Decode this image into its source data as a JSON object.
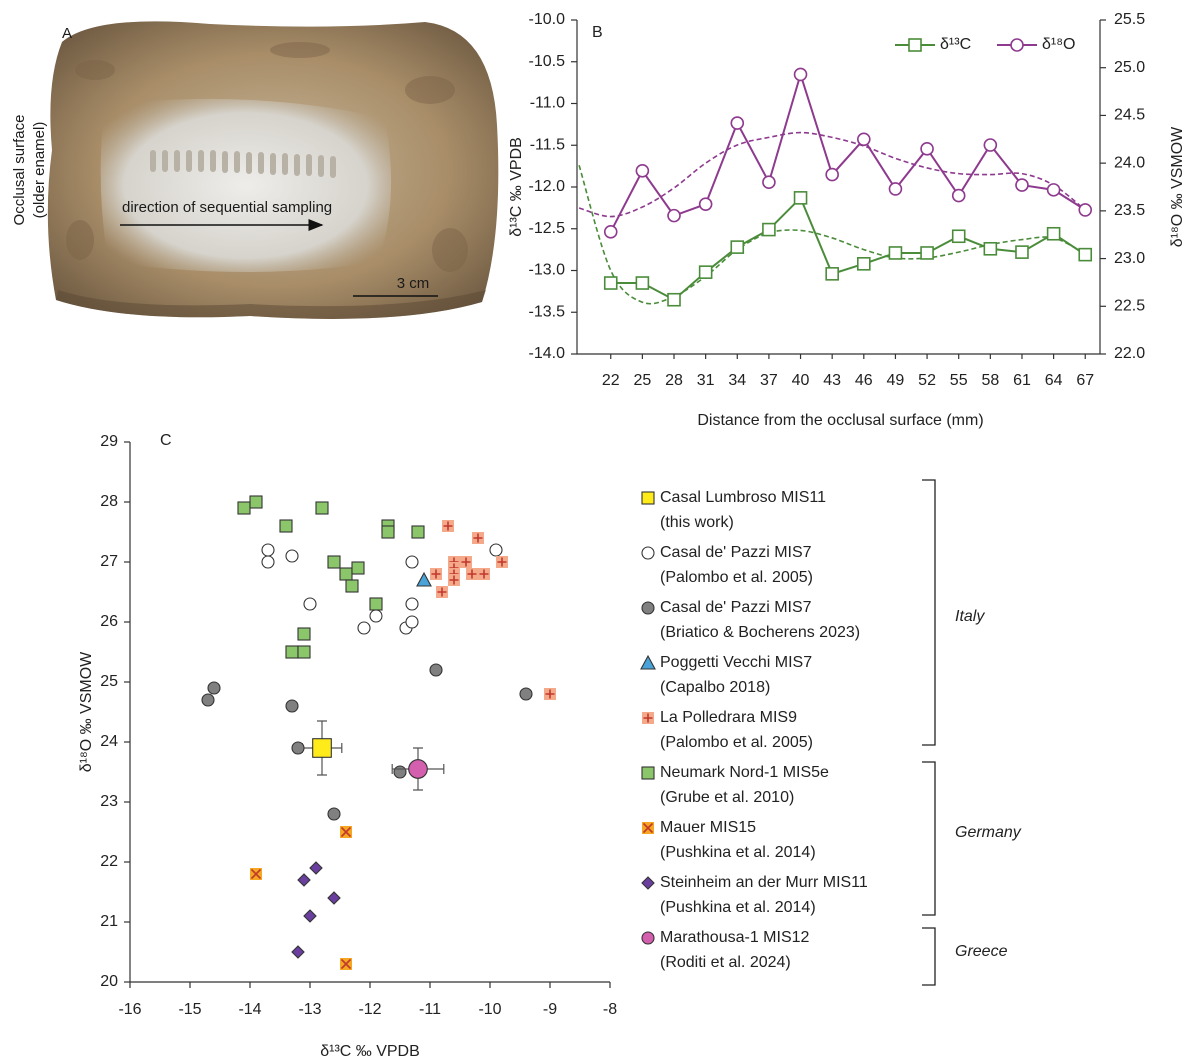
{
  "panel_a": {
    "label": "A",
    "side_label": [
      "Occlusal surface",
      "(older enamel)"
    ],
    "arrow_label": "direction of sequential sampling",
    "scale_label": "3 cm"
  },
  "chart_data": [
    {
      "type": "line",
      "label": "B",
      "x": [
        22,
        25,
        28,
        31,
        34,
        37,
        40,
        43,
        46,
        49,
        52,
        55,
        58,
        61,
        64,
        67
      ],
      "xlim": [
        18.8,
        68.4
      ],
      "xticks": [
        22,
        25,
        28,
        31,
        34,
        37,
        40,
        43,
        46,
        49,
        52,
        55,
        58,
        61,
        64,
        67
      ],
      "xlabel": "Distance from the occlusal surface (mm)",
      "ylabel": "δ¹³C ‰ VPDB",
      "y2label": "δ¹⁸O ‰ VSMOW",
      "ylim": [
        -14,
        -10
      ],
      "yticks": [
        {
          "value": -14,
          "label": "-14.0"
        },
        -13.5,
        {
          "value": -13,
          "label": "-13.0"
        },
        -12.5,
        {
          "value": -12,
          "label": "-12.0"
        },
        -11.5,
        {
          "value": -11,
          "label": "-11.0"
        },
        -10.5,
        {
          "value": -10,
          "label": "-10.0"
        }
      ],
      "y2lim": [
        22,
        25.5
      ],
      "y2ticks": [
        {
          "value": 22,
          "label": "22.0"
        },
        22.5,
        {
          "value": 23,
          "label": "23.0"
        },
        23.5,
        {
          "value": 24,
          "label": "24.0"
        },
        24.5,
        {
          "value": 25,
          "label": "25.0"
        },
        25.5
      ],
      "legend": "top-right",
      "series": [
        {
          "name": "δ¹³C",
          "color": "#4a8c3a",
          "marker": "square",
          "values": [
            -13.15,
            -13.15,
            -13.35,
            -13.02,
            -12.72,
            -12.51,
            -12.13,
            -13.04,
            -12.92,
            -12.79,
            -12.79,
            -12.59,
            -12.74,
            -12.78,
            -12.56,
            -12.81
          ],
          "trend": {
            "x": [
              19,
              22,
              25,
              28,
              31,
              34,
              37,
              40,
              43,
              46,
              49,
              52,
              55,
              58,
              61,
              64,
              67
            ],
            "values": [
              -11.74,
              -13.0,
              -13.38,
              -13.31,
              -13.07,
              -12.75,
              -12.55,
              -12.52,
              -12.61,
              -12.75,
              -12.85,
              -12.85,
              -12.78,
              -12.69,
              -12.63,
              -12.61,
              -12.8
            ]
          }
        },
        {
          "name": "δ¹⁸O",
          "color": "#8e3a8e",
          "marker": "circle",
          "axis": "y2",
          "values": [
            23.28,
            23.92,
            23.45,
            23.57,
            24.42,
            23.8,
            24.93,
            23.88,
            24.25,
            23.73,
            24.15,
            23.66,
            24.19,
            23.77,
            23.72,
            23.51
          ],
          "trend": {
            "x": [
              19,
              22,
              25,
              28,
              31,
              34,
              37,
              40,
              43,
              46,
              49,
              52,
              55,
              58,
              61,
              64,
              67
            ],
            "values": [
              23.53,
              23.44,
              23.54,
              23.74,
              24.0,
              24.19,
              24.27,
              24.32,
              24.27,
              24.18,
              24.05,
              23.95,
              23.89,
              23.88,
              23.89,
              23.77,
              23.51
            ]
          }
        }
      ]
    },
    {
      "type": "scatter",
      "label": "C",
      "xlabel": "δ¹³C ‰ VPDB",
      "ylabel": "δ¹⁸O ‰ VSMOW",
      "xlim": [
        -16,
        -8
      ],
      "xticks": [
        -16,
        -15,
        -14,
        -13,
        -12,
        -11,
        -10,
        -9,
        -8
      ],
      "ylim": [
        20,
        29
      ],
      "yticks": [
        20,
        21,
        22,
        23,
        24,
        25,
        26,
        27,
        28,
        29
      ],
      "groups": [
        {
          "label": "Italy"
        },
        {
          "label": "Germany"
        },
        {
          "label": "Greece"
        }
      ],
      "series": [
        {
          "name": "Casal Lumbroso MIS11",
          "source": "(this work)",
          "marker": "square",
          "color": "#ffeb1a",
          "x": [
            -12.8
          ],
          "values": [
            23.9
          ],
          "xerr": [
            0.33
          ],
          "yerr": [
            0.45
          ]
        },
        {
          "name": "Casal de' Pazzi MIS7",
          "source": "(Palombo et al. 2005)",
          "marker": "circle",
          "color": "#ffffff",
          "x": [
            -13.7,
            -13.7,
            -13.3,
            -13.0,
            -12.1,
            -11.9,
            -11.3,
            -11.3,
            -11.4,
            -11.3,
            -9.9
          ],
          "values": [
            27.2,
            27.0,
            27.1,
            26.3,
            25.9,
            26.1,
            27.0,
            26.3,
            25.9,
            26.0,
            27.2
          ]
        },
        {
          "name": "Casal de' Pazzi MIS7",
          "source": "(Briatico & Bocherens 2023)",
          "marker": "circle",
          "color": "#808080",
          "x": [
            -14.7,
            -14.6,
            -13.3,
            -13.2,
            -10.9,
            -9.4,
            -11.5,
            -12.6
          ],
          "values": [
            24.7,
            24.9,
            24.6,
            23.9,
            25.2,
            24.8,
            23.5,
            22.8
          ]
        },
        {
          "name": "Poggetti Vecchi MIS7",
          "source": "(Capalbo 2018)",
          "marker": "triangle",
          "color": "#4aa3d8",
          "x": [
            -11.1
          ],
          "values": [
            26.7
          ]
        },
        {
          "name": "La Polledrara MIS9",
          "source": "(Palombo et al. 2005)",
          "marker": "square-plus",
          "color": "#f4a98a",
          "x": [
            -10.7,
            -10.2,
            -10.9,
            -10.4,
            -10.6,
            -10.6,
            -10.6,
            -10.6,
            -10.8,
            -10.3,
            -10.1,
            -9.8,
            -9.0
          ],
          "values": [
            27.6,
            27.4,
            26.8,
            27.0,
            27.0,
            26.9,
            26.8,
            26.7,
            26.5,
            26.8,
            26.8,
            27.0,
            24.8
          ]
        },
        {
          "name": "Neumark Nord-1 MIS5e",
          "source": "(Grube et al. 2010)",
          "marker": "square",
          "color": "#8cc66a",
          "x": [
            -14.1,
            -13.9,
            -13.4,
            -12.8,
            -11.7,
            -11.7,
            -11.2,
            -12.6,
            -12.4,
            -12.2,
            -12.3,
            -11.9,
            -13.1,
            -13.3,
            -13.1
          ],
          "values": [
            27.9,
            28.0,
            27.6,
            27.9,
            27.6,
            27.5,
            27.5,
            27.0,
            26.8,
            26.9,
            26.6,
            26.3,
            25.8,
            25.5,
            25.5
          ]
        },
        {
          "name": "Mauer MIS15",
          "source": "(Pushkina et al. 2014)",
          "marker": "square-cross",
          "color": "#f5a623",
          "x": [
            -12.4,
            -13.9,
            -12.4
          ],
          "values": [
            22.5,
            21.8,
            20.3
          ]
        },
        {
          "name": "Steinheim an der Murr MIS11",
          "source": "(Pushkina et al. 2014)",
          "marker": "diamond",
          "color": "#6a3fa0",
          "x": [
            -12.9,
            -13.1,
            -12.6,
            -13.0,
            -13.2
          ],
          "values": [
            21.9,
            21.7,
            21.4,
            21.1,
            20.5
          ]
        },
        {
          "name": "Marathousa-1 MIS12",
          "source": "(Roditi et al. 2024)",
          "marker": "circle",
          "color": "#d35fae",
          "x": [
            -11.2
          ],
          "values": [
            23.55
          ],
          "xerr": [
            0.43
          ],
          "yerr": [
            0.35
          ]
        }
      ]
    }
  ]
}
